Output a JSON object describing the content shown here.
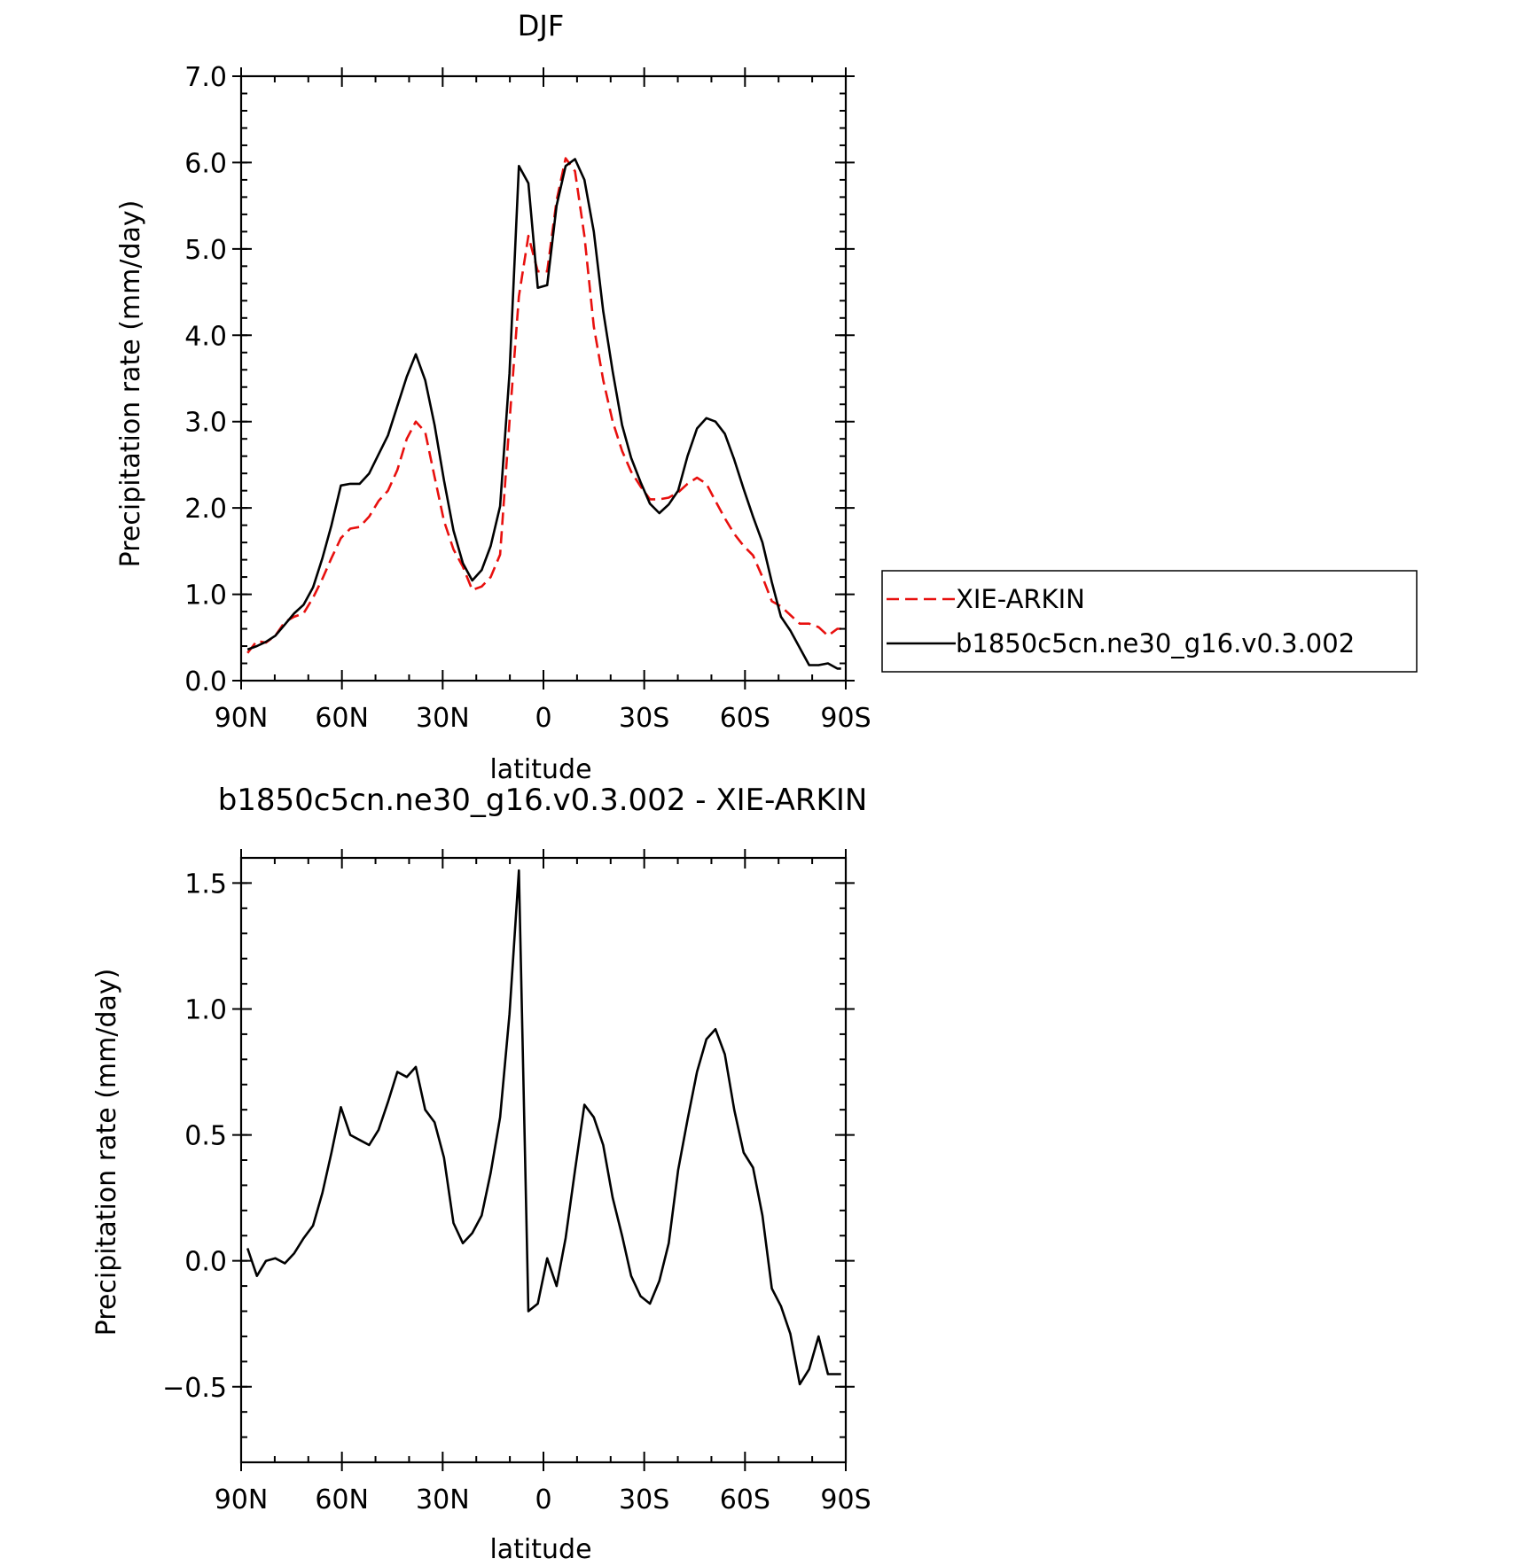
{
  "chart_data": [
    {
      "type": "line",
      "title": "DJF",
      "xlabel": "latitude",
      "ylabel": "Precipitation rate (mm/day)",
      "xlim": [
        90,
        -90
      ],
      "ylim": [
        0.0,
        7.0
      ],
      "x_ticks": [
        {
          "value": 90,
          "label": "90N"
        },
        {
          "value": 60,
          "label": "60N"
        },
        {
          "value": 30,
          "label": "30N"
        },
        {
          "value": 0,
          "label": "0"
        },
        {
          "value": -30,
          "label": "30S"
        },
        {
          "value": -60,
          "label": "60S"
        },
        {
          "value": -90,
          "label": "90S"
        }
      ],
      "y_ticks": [
        {
          "value": 0,
          "label": "0.0"
        },
        {
          "value": 1,
          "label": "1.0"
        },
        {
          "value": 2,
          "label": "2.0"
        },
        {
          "value": 3,
          "label": "3.0"
        },
        {
          "value": 4,
          "label": "4.0"
        },
        {
          "value": 5,
          "label": "5.0"
        },
        {
          "value": 6,
          "label": "6.0"
        },
        {
          "value": 7,
          "label": "7.0"
        }
      ],
      "legend": {
        "placement": "right",
        "entries": [
          "XIE-ARKIN",
          "b1850c5cn.ne30_g16.v0.3.002"
        ]
      },
      "series": [
        {
          "name": "XIE-ARKIN",
          "color": "#e8100e",
          "dash": "dashed",
          "x": [
            88.1,
            85.3,
            82.6,
            79.8,
            77.0,
            74.2,
            71.4,
            68.6,
            65.8,
            63.1,
            60.3,
            57.5,
            54.7,
            51.9,
            49.1,
            46.3,
            43.5,
            40.7,
            38.0,
            35.2,
            32.4,
            29.6,
            26.8,
            24.0,
            21.2,
            18.4,
            15.7,
            12.9,
            10.1,
            7.3,
            4.5,
            1.7,
            -1.1,
            -3.9,
            -6.6,
            -9.4,
            -12.2,
            -15.0,
            -17.8,
            -20.6,
            -23.4,
            -26.1,
            -28.9,
            -31.7,
            -34.5,
            -37.3,
            -40.1,
            -42.9,
            -45.7,
            -48.5,
            -51.2,
            -54.0,
            -56.8,
            -59.6,
            -62.4,
            -65.2,
            -68.0,
            -70.7,
            -73.5,
            -76.3,
            -79.1,
            -81.9,
            -84.7,
            -87.5,
            -88.6
          ],
          "values": [
            0.32,
            0.46,
            0.44,
            0.52,
            0.68,
            0.74,
            0.78,
            0.96,
            1.18,
            1.42,
            1.65,
            1.76,
            1.78,
            1.9,
            2.08,
            2.2,
            2.44,
            2.8,
            3.0,
            2.88,
            2.36,
            1.85,
            1.52,
            1.32,
            1.05,
            1.09,
            1.2,
            1.46,
            3.0,
            4.45,
            5.15,
            4.74,
            4.74,
            5.56,
            6.05,
            5.9,
            5.15,
            4.1,
            3.48,
            3.0,
            2.66,
            2.42,
            2.25,
            2.1,
            2.1,
            2.12,
            2.18,
            2.28,
            2.35,
            2.28,
            2.08,
            1.88,
            1.7,
            1.56,
            1.45,
            1.2,
            0.92,
            0.86,
            0.76,
            0.66,
            0.66,
            0.62,
            0.52,
            0.6,
            0.6
          ]
        },
        {
          "name": "b1850c5cn.ne30_g16.v0.3.002",
          "color": "#000000",
          "dash": "solid",
          "x": [
            88.1,
            85.3,
            82.6,
            79.8,
            77.0,
            74.2,
            71.4,
            68.6,
            65.8,
            63.1,
            60.3,
            57.5,
            54.7,
            51.9,
            49.1,
            46.3,
            43.5,
            40.7,
            38.0,
            35.2,
            32.4,
            29.6,
            26.8,
            24.0,
            21.2,
            18.4,
            15.7,
            12.9,
            10.1,
            7.3,
            4.5,
            1.7,
            -1.1,
            -3.9,
            -6.6,
            -9.4,
            -12.2,
            -15.0,
            -17.8,
            -20.6,
            -23.4,
            -26.1,
            -28.9,
            -31.7,
            -34.5,
            -37.3,
            -40.1,
            -42.9,
            -45.7,
            -48.5,
            -51.2,
            -54.0,
            -56.8,
            -59.6,
            -62.4,
            -65.2,
            -68.0,
            -70.7,
            -73.5,
            -76.3,
            -79.1,
            -81.9,
            -84.7,
            -87.5,
            -88.6
          ],
          "values": [
            0.36,
            0.4,
            0.45,
            0.52,
            0.65,
            0.78,
            0.88,
            1.08,
            1.42,
            1.8,
            2.26,
            2.28,
            2.28,
            2.4,
            2.62,
            2.84,
            3.18,
            3.52,
            3.78,
            3.48,
            2.96,
            2.32,
            1.74,
            1.36,
            1.16,
            1.28,
            1.56,
            2.02,
            3.56,
            5.96,
            5.76,
            4.55,
            4.58,
            5.5,
            5.96,
            6.04,
            5.8,
            5.2,
            4.28,
            3.58,
            2.96,
            2.58,
            2.3,
            2.05,
            1.94,
            2.04,
            2.2,
            2.6,
            2.92,
            3.04,
            3.0,
            2.86,
            2.56,
            2.22,
            1.9,
            1.6,
            1.14,
            0.74,
            0.58,
            0.38,
            0.18,
            0.18,
            0.2,
            0.14,
            0.14
          ]
        }
      ]
    },
    {
      "type": "line",
      "title": "b1850c5cn.ne30_g16.v0.3.002 - XIE-ARKIN",
      "xlabel": "latitude",
      "ylabel": "Precipitation rate (mm/day)",
      "xlim": [
        90,
        -90
      ],
      "ylim": [
        -0.8,
        1.6
      ],
      "x_ticks": [
        {
          "value": 90,
          "label": "90N"
        },
        {
          "value": 60,
          "label": "60N"
        },
        {
          "value": 30,
          "label": "30N"
        },
        {
          "value": 0,
          "label": "0"
        },
        {
          "value": -30,
          "label": "30S"
        },
        {
          "value": -60,
          "label": "60S"
        },
        {
          "value": -90,
          "label": "90S"
        }
      ],
      "y_ticks": [
        {
          "value": -0.5,
          "label": "−0.5"
        },
        {
          "value": 0.0,
          "label": "0.0"
        },
        {
          "value": 0.5,
          "label": "0.5"
        },
        {
          "value": 1.0,
          "label": "1.0"
        },
        {
          "value": 1.5,
          "label": "1.5"
        }
      ],
      "series": [
        {
          "color": "#000000",
          "dash": "solid",
          "x": [
            88.1,
            85.3,
            82.6,
            79.8,
            77.0,
            74.2,
            71.4,
            68.6,
            65.8,
            63.1,
            60.3,
            57.5,
            54.7,
            51.9,
            49.1,
            46.3,
            43.5,
            40.7,
            38.0,
            35.2,
            32.4,
            29.6,
            26.8,
            24.0,
            21.2,
            18.4,
            15.7,
            12.9,
            10.1,
            7.3,
            4.5,
            1.7,
            -1.1,
            -3.9,
            -6.6,
            -9.4,
            -12.2,
            -15.0,
            -17.8,
            -20.6,
            -23.4,
            -26.1,
            -28.9,
            -31.7,
            -34.5,
            -37.3,
            -40.1,
            -42.9,
            -45.7,
            -48.5,
            -51.2,
            -54.0,
            -56.8,
            -59.6,
            -62.4,
            -65.2,
            -68.0,
            -70.7,
            -73.5,
            -76.3,
            -79.1,
            -81.9,
            -84.7,
            -87.5,
            -88.6
          ],
          "values": [
            0.05,
            -0.06,
            0.0,
            0.01,
            -0.01,
            0.03,
            0.09,
            0.14,
            0.27,
            0.43,
            0.61,
            0.5,
            0.48,
            0.46,
            0.52,
            0.63,
            0.75,
            0.73,
            0.77,
            0.6,
            0.55,
            0.41,
            0.15,
            0.07,
            0.11,
            0.18,
            0.35,
            0.57,
            0.98,
            1.55,
            -0.2,
            -0.17,
            0.01,
            -0.1,
            0.09,
            0.36,
            0.62,
            0.57,
            0.46,
            0.25,
            0.1,
            -0.06,
            -0.14,
            -0.17,
            -0.08,
            0.07,
            0.36,
            0.56,
            0.75,
            0.88,
            0.92,
            0.82,
            0.6,
            0.43,
            0.37,
            0.18,
            -0.11,
            -0.18,
            -0.29,
            -0.49,
            -0.43,
            -0.3,
            -0.45,
            -0.45,
            -0.45
          ]
        }
      ]
    }
  ]
}
